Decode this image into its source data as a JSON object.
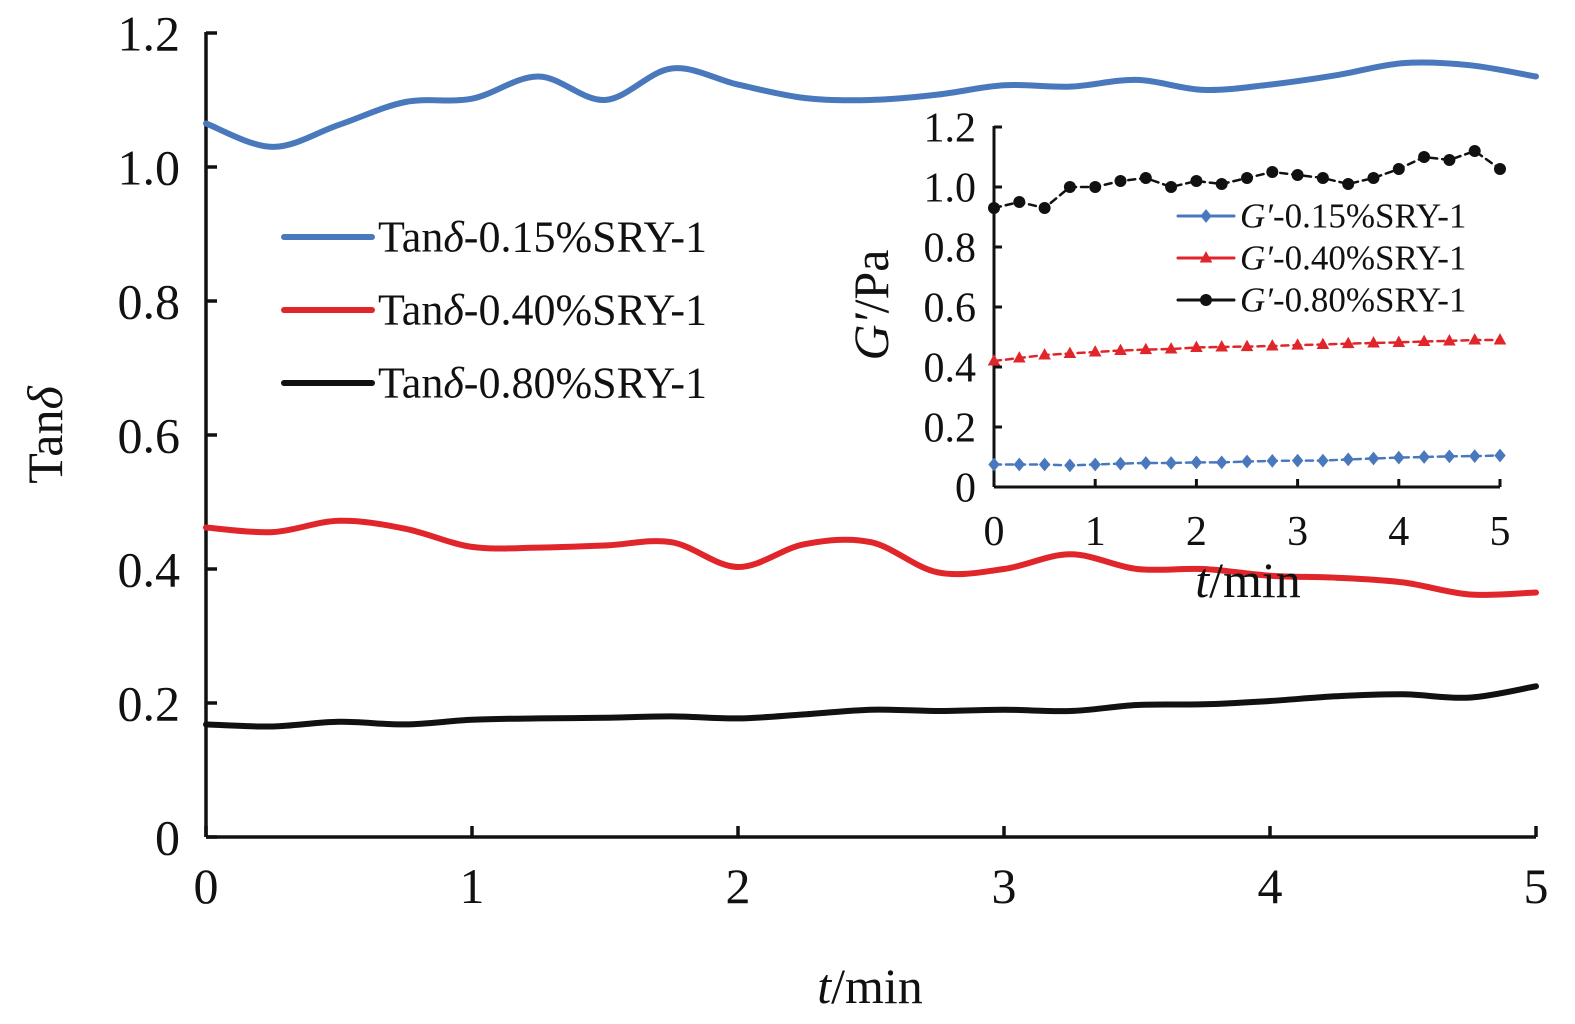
{
  "chart_data": [
    {
      "type": "line",
      "xlabel": "t/min",
      "ylabel": "Tanδ",
      "xlim": [
        0,
        5
      ],
      "ylim": [
        0,
        1.2
      ],
      "xticks": [
        "0",
        "1",
        "2",
        "3",
        "4",
        "5"
      ],
      "yticks": [
        "0",
        "0.2",
        "0.4",
        "0.6",
        "0.8",
        "1.0",
        "1.2"
      ],
      "grid": false,
      "legend_position": "center-left",
      "series": [
        {
          "name": "Tanδ-0.15%SRY-1",
          "color": "#4a78bd",
          "x": [
            0,
            0.25,
            0.5,
            0.75,
            1.0,
            1.25,
            1.5,
            1.75,
            2.0,
            2.25,
            2.5,
            2.75,
            3.0,
            3.25,
            3.5,
            3.75,
            4.0,
            4.25,
            4.5,
            4.75,
            5.0
          ],
          "y": [
            1.065,
            1.03,
            1.063,
            1.097,
            1.102,
            1.135,
            1.1,
            1.147,
            1.123,
            1.103,
            1.1,
            1.108,
            1.122,
            1.12,
            1.13,
            1.115,
            1.123,
            1.137,
            1.155,
            1.152,
            1.135
          ]
        },
        {
          "name": "Tanδ-0.40%SRY-1",
          "color": "#e0262a",
          "x": [
            0,
            0.25,
            0.5,
            0.75,
            1.0,
            1.25,
            1.5,
            1.75,
            2.0,
            2.25,
            2.5,
            2.75,
            3.0,
            3.25,
            3.5,
            3.75,
            4.0,
            4.25,
            4.5,
            4.75,
            5.0
          ],
          "y": [
            0.462,
            0.455,
            0.472,
            0.46,
            0.433,
            0.432,
            0.435,
            0.44,
            0.403,
            0.437,
            0.44,
            0.395,
            0.4,
            0.422,
            0.4,
            0.4,
            0.39,
            0.387,
            0.38,
            0.362,
            0.365
          ]
        },
        {
          "name": "Tanδ-0.80%SRY-1",
          "color": "#111111",
          "x": [
            0,
            0.25,
            0.5,
            0.75,
            1.0,
            1.25,
            1.5,
            1.75,
            2.0,
            2.25,
            2.5,
            2.75,
            3.0,
            3.25,
            3.5,
            3.75,
            4.0,
            4.25,
            4.5,
            4.75,
            5.0
          ],
          "y": [
            0.168,
            0.165,
            0.172,
            0.168,
            0.175,
            0.177,
            0.178,
            0.18,
            0.177,
            0.183,
            0.19,
            0.188,
            0.19,
            0.188,
            0.197,
            0.198,
            0.203,
            0.21,
            0.213,
            0.208,
            0.225
          ]
        }
      ]
    },
    {
      "type": "line",
      "xlabel": "t/min",
      "ylabel": "G′/Pa",
      "xlim": [
        0,
        5
      ],
      "ylim": [
        0,
        1.2
      ],
      "xticks": [
        "0",
        "1",
        "2",
        "3",
        "4",
        "5"
      ],
      "yticks": [
        "0",
        "0.2",
        "0.4",
        "0.6",
        "0.8",
        "1.0",
        "1.2"
      ],
      "grid": false,
      "legend_position": "top-right",
      "series": [
        {
          "name": "G′-0.15%SRY-1",
          "color": "#4a78bd",
          "marker": "diamond",
          "x": [
            0,
            0.25,
            0.5,
            0.75,
            1.0,
            1.25,
            1.5,
            1.75,
            2.0,
            2.25,
            2.5,
            2.75,
            3.0,
            3.25,
            3.5,
            3.75,
            4.0,
            4.25,
            4.5,
            4.75,
            5.0
          ],
          "y": [
            0.075,
            0.075,
            0.075,
            0.072,
            0.075,
            0.078,
            0.08,
            0.08,
            0.082,
            0.082,
            0.085,
            0.087,
            0.088,
            0.088,
            0.092,
            0.095,
            0.098,
            0.1,
            0.102,
            0.103,
            0.105
          ]
        },
        {
          "name": "G′-0.40%SRY-1",
          "color": "#e0262a",
          "marker": "triangle",
          "x": [
            0,
            0.25,
            0.5,
            0.75,
            1.0,
            1.25,
            1.5,
            1.75,
            2.0,
            2.25,
            2.5,
            2.75,
            3.0,
            3.25,
            3.5,
            3.75,
            4.0,
            4.25,
            4.5,
            4.75,
            5.0
          ],
          "y": [
            0.42,
            0.43,
            0.44,
            0.445,
            0.45,
            0.455,
            0.458,
            0.46,
            0.465,
            0.467,
            0.468,
            0.47,
            0.473,
            0.475,
            0.478,
            0.48,
            0.482,
            0.485,
            0.487,
            0.49,
            0.49
          ]
        },
        {
          "name": "G′-0.80%SRY-1",
          "color": "#111111",
          "marker": "circle",
          "x": [
            0,
            0.25,
            0.5,
            0.75,
            1.0,
            1.25,
            1.5,
            1.75,
            2.0,
            2.25,
            2.5,
            2.75,
            3.0,
            3.25,
            3.5,
            3.75,
            4.0,
            4.25,
            4.5,
            4.75,
            5.0
          ],
          "y": [
            0.93,
            0.95,
            0.93,
            1.0,
            1.0,
            1.02,
            1.03,
            1.0,
            1.02,
            1.01,
            1.03,
            1.05,
            1.04,
            1.03,
            1.01,
            1.03,
            1.06,
            1.1,
            1.09,
            1.12,
            1.06
          ]
        }
      ]
    }
  ]
}
